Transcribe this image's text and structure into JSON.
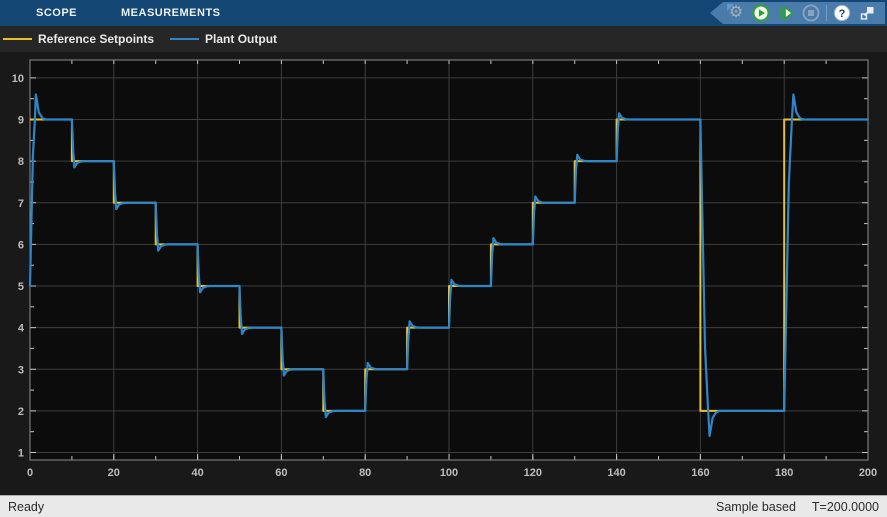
{
  "tabs": [
    {
      "label": "SCOPE"
    },
    {
      "label": "MEASUREMENTS"
    }
  ],
  "toolbar": {
    "icons": [
      {
        "name": "collapse-chevron-icon"
      },
      {
        "name": "simulation-settings-icon"
      },
      {
        "name": "run-icon"
      },
      {
        "name": "step-forward-icon"
      },
      {
        "name": "stop-icon"
      },
      {
        "name": "help-icon"
      },
      {
        "name": "dock-icon"
      }
    ],
    "pill_color": "#4A7CAB",
    "bar_color": "#134672"
  },
  "legend": [
    {
      "label": "Reference Setpoints",
      "color": "#E6C22E"
    },
    {
      "label": "Plant Output",
      "color": "#2E86C8"
    }
  ],
  "status_bar": {
    "left": "Ready",
    "sample_mode": "Sample based",
    "time": "T=200.0000"
  },
  "chart_data": {
    "type": "line",
    "title": "",
    "xlabel": "",
    "ylabel": "",
    "xlim": [
      0,
      200
    ],
    "ylim": [
      0.82,
      10.43
    ],
    "xticks": [
      0,
      20,
      40,
      60,
      80,
      100,
      120,
      140,
      160,
      180,
      200
    ],
    "yticks": [
      1,
      2,
      3,
      4,
      5,
      6,
      7,
      8,
      9,
      10
    ],
    "x_minor_step": 10,
    "y_minor_step": 0.5,
    "grid": true,
    "legend_position": "top-left-bar",
    "colors": {
      "plot_bg": "#0C0C0C",
      "panel_bg": "#191919",
      "grid": "#3E3E3E",
      "frame": "#8C8C8C",
      "tick": "#C4C4C4",
      "tick_label": "#BDBDBD"
    },
    "series": [
      {
        "name": "Reference Setpoints",
        "color": "#E6C22E",
        "shape": "staircase",
        "step_times": [
          0,
          10,
          20,
          30,
          40,
          50,
          60,
          70,
          80,
          90,
          100,
          110,
          120,
          130,
          140,
          160,
          180
        ],
        "step_values": [
          9,
          8,
          7,
          6,
          5,
          4,
          3,
          2,
          3,
          4,
          5,
          6,
          7,
          8,
          9,
          2,
          9
        ],
        "end_time": 200
      },
      {
        "name": "Plant Output",
        "color": "#2E86C8",
        "shape": "tracking-response-with-overshoot",
        "initial_value": 5,
        "follows": "Reference Setpoints",
        "overshoot_fraction": 0.15,
        "overshoot_cap": 0.6
      }
    ]
  }
}
